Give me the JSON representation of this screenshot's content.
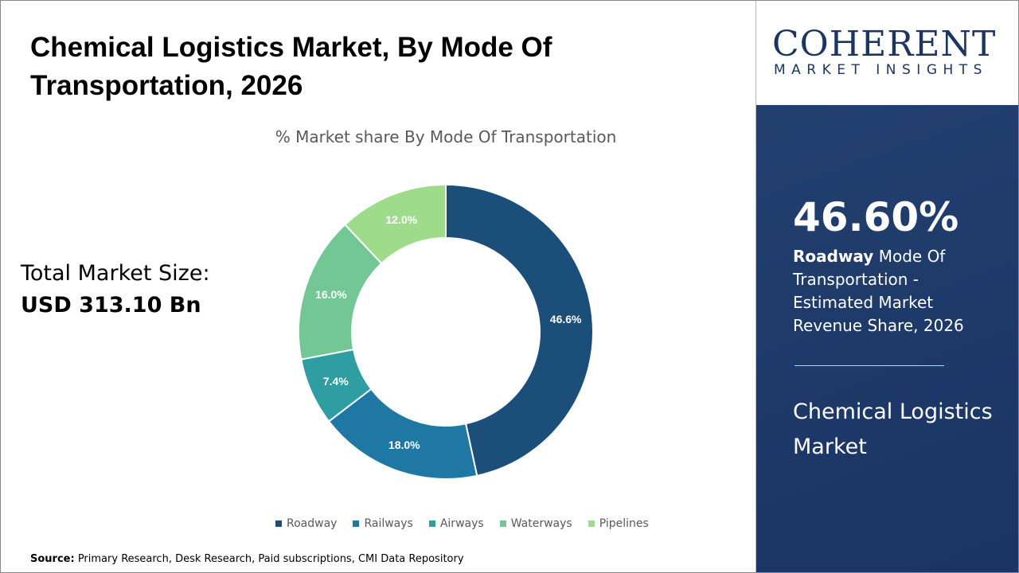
{
  "title": "Chemical Logistics Market, By Mode Of Transportation, 2026",
  "total": {
    "label": "Total Market Size:",
    "value": "USD 313.10 Bn"
  },
  "source": {
    "label": "Source:",
    "text": " Primary Research, Desk Research, Paid subscriptions, CMI Data Repository"
  },
  "logo": {
    "main": "COHERENT",
    "sub": "MARKET INSIGHTS"
  },
  "highlight": {
    "value": "46.60%",
    "bold": "Roadway",
    "rest": " Mode Of Transportation - Estimated Market Revenue Share, 2026",
    "market": "Chemical Logistics Market"
  },
  "chart_data": {
    "type": "pie",
    "donut": true,
    "title": "% Market share By Mode Of Transportation",
    "categories": [
      "Roadway",
      "Railways",
      "Airways",
      "Waterways",
      "Pipelines"
    ],
    "values": [
      46.6,
      18.0,
      7.4,
      16.0,
      12.0
    ],
    "labels": [
      "46.6%",
      "18.0%",
      "7.4%",
      "16.0%",
      "12.0%"
    ],
    "colors": [
      "#1b4e79",
      "#1f77a4",
      "#2f9ea3",
      "#72c794",
      "#9edc8b"
    ],
    "legend": "bottom"
  }
}
